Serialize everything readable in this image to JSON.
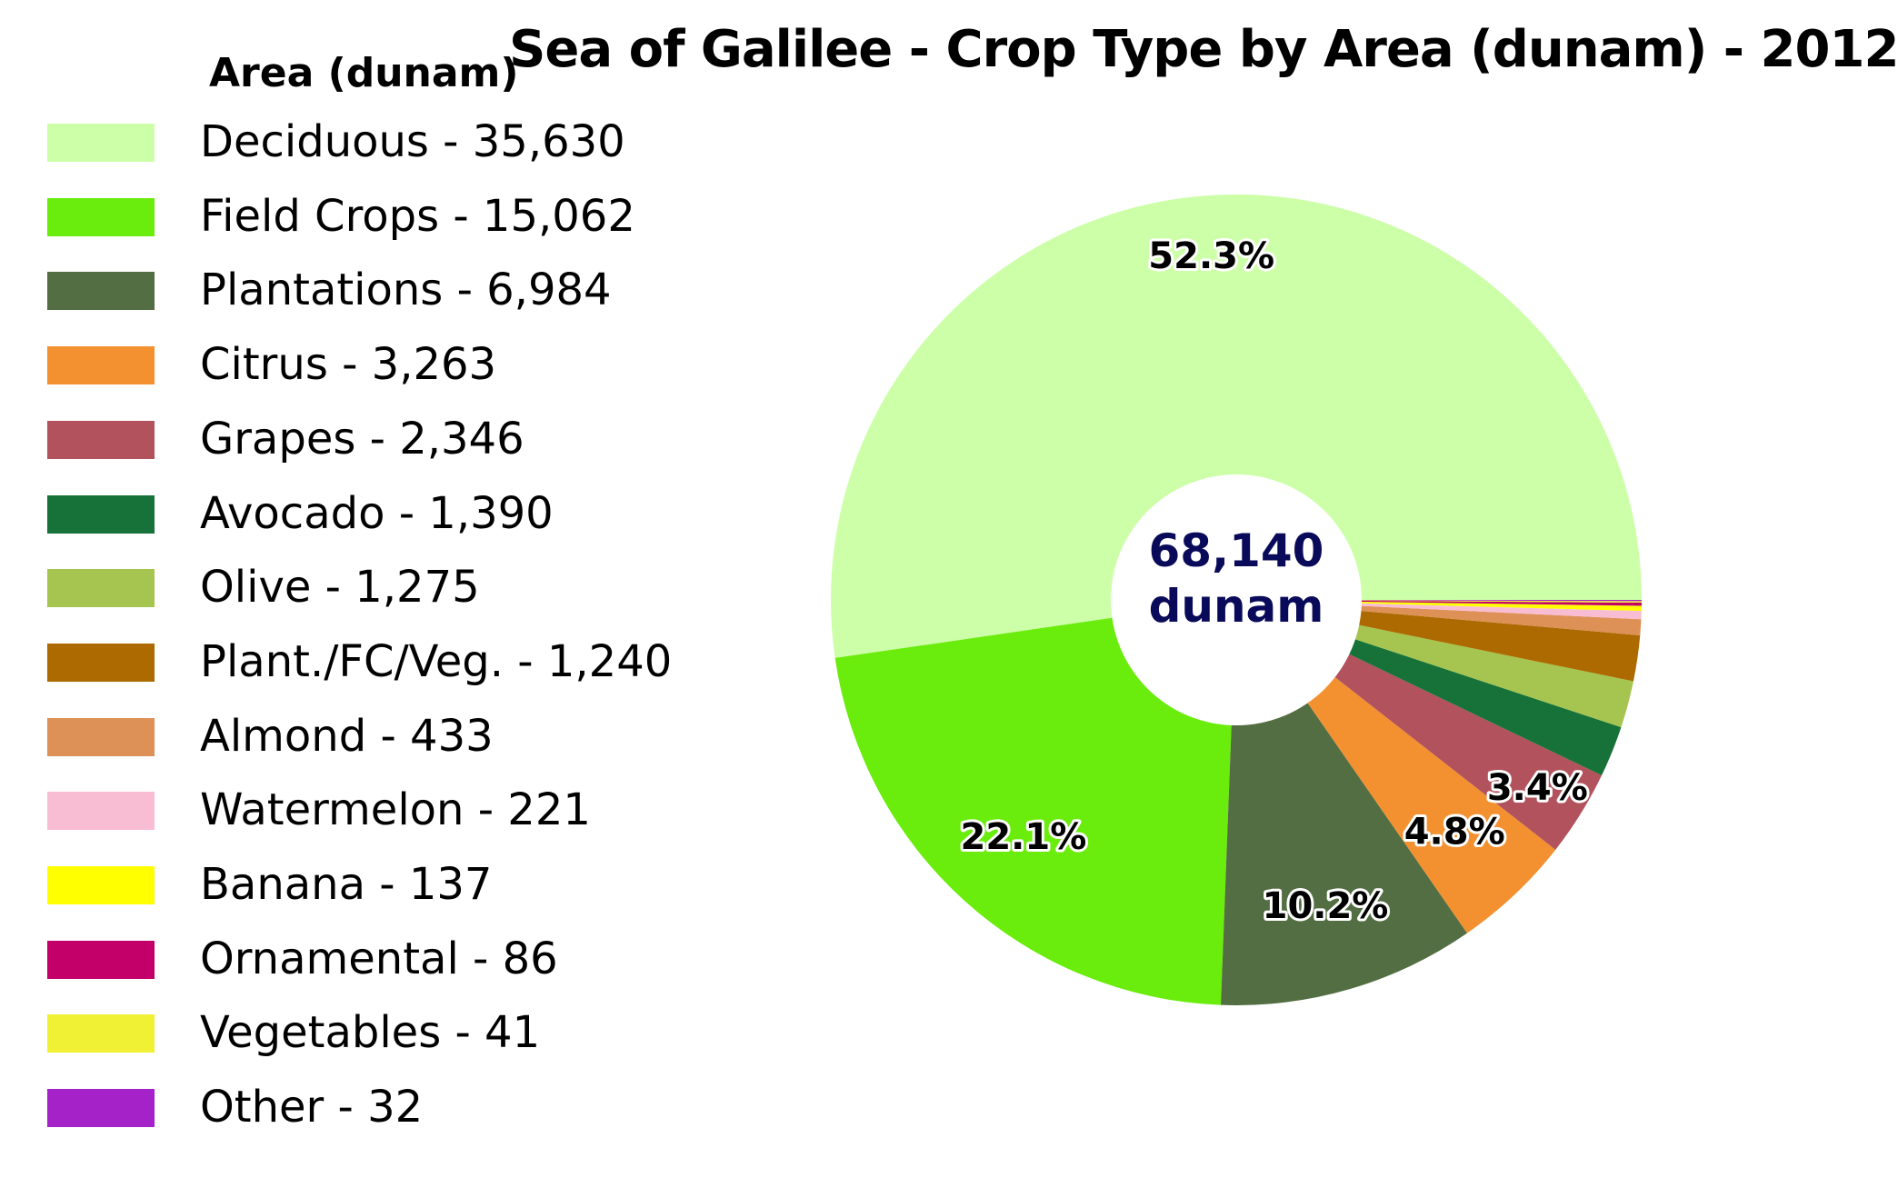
{
  "chart_data": {
    "type": "pie",
    "title": "Sea of Galilee - Crop Type by Area (dunam) - 2012",
    "legend_title": "Area (dunam)",
    "legend_position": "left",
    "donut": true,
    "center_text": [
      "68,140",
      "dunam"
    ],
    "total": 68140,
    "categories": [
      "Deciduous",
      "Field Crops",
      "Plantations",
      "Citrus",
      "Grapes",
      "Avocado",
      "Olive",
      "Plant./FC/Veg.",
      "Almond",
      "Watermelon",
      "Banana",
      "Ornamental",
      "Vegetables",
      "Other"
    ],
    "legend_labels": [
      "Deciduous - 35,630",
      "Field Crops - 15,062",
      "Plantations - 6,984",
      "Citrus - 3,263",
      "Grapes - 2,346",
      "Avocado - 1,390",
      "Olive - 1,275",
      "Plant./FC/Veg. - 1,240",
      "Almond - 433",
      "Watermelon - 221",
      "Banana - 137",
      "Ornamental - 86",
      "Vegetables - 41",
      "Other - 32"
    ],
    "values": [
      35630,
      15062,
      6984,
      3263,
      2346,
      1390,
      1275,
      1240,
      433,
      221,
      137,
      86,
      41,
      32
    ],
    "colors": [
      "#ccffa8",
      "#6aec0c",
      "#536e42",
      "#f39131",
      "#b2525c",
      "#167238",
      "#a6c450",
      "#ac6a00",
      "#dd9157",
      "#f9bdd3",
      "#ffff00",
      "#c3006a",
      "#f0f034",
      "#a522c8"
    ],
    "data_labels": [
      "52.3%",
      "22.1%",
      "10.2%",
      "4.8%",
      "3.4%",
      "",
      "",
      "",
      "",
      "",
      "",
      "",
      "",
      ""
    ]
  }
}
